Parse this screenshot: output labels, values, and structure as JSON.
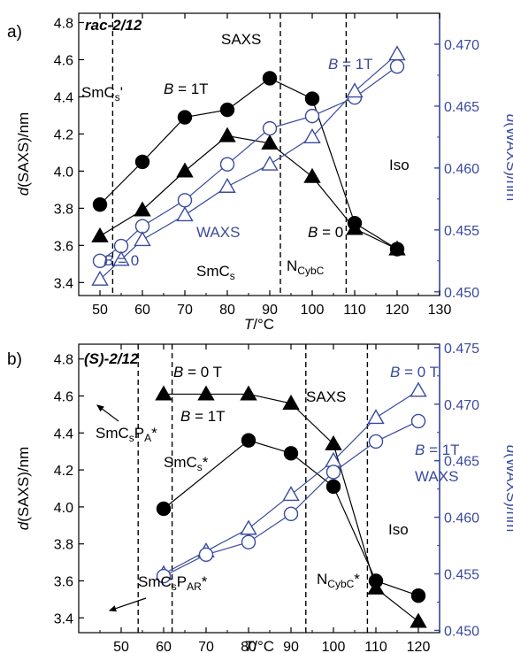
{
  "colors": {
    "black": "#000000",
    "blue": "#3a4a9e"
  },
  "chart_data": [
    {
      "type": "scatter",
      "panel_label": "a)",
      "title": "rac-2/12",
      "xlabel": "T/°C",
      "ylabel": "d(SAXS)/nm",
      "y2label": "d(WAXS)/nm",
      "xlim": [
        45,
        130
      ],
      "ylim": [
        3.33,
        4.85
      ],
      "y2lim": [
        0.4497,
        0.4725
      ],
      "x_ticks": [
        50,
        60,
        70,
        80,
        90,
        100,
        110,
        120,
        130
      ],
      "y_ticks": [
        3.4,
        3.6,
        3.8,
        4.0,
        4.2,
        4.4,
        4.6,
        4.8
      ],
      "y2_ticks": [
        0.45,
        0.455,
        0.46,
        0.465,
        0.47
      ],
      "x_tick_labels": [
        "50",
        "60",
        "70",
        "80",
        "90",
        "100",
        "110",
        "120",
        "130"
      ],
      "y_tick_labels": [
        "3.4",
        "3.6",
        "3.8",
        "4.0",
        "4.2",
        "4.4",
        "4.6",
        "4.8"
      ],
      "y2_tick_labels": [
        "0.450",
        "0.455",
        "0.460",
        "0.465",
        "0.470"
      ],
      "phase_boundaries": [
        53,
        92.5,
        108
      ],
      "series": [
        {
          "axis": "left",
          "marker": "circle",
          "fill": true,
          "color": "#000000",
          "x": [
            50,
            60,
            70,
            80,
            90,
            100,
            110,
            120
          ],
          "y": [
            3.82,
            4.05,
            4.29,
            4.33,
            4.5,
            4.39,
            3.72,
            3.58
          ]
        },
        {
          "axis": "left",
          "marker": "triangle",
          "fill": true,
          "color": "#000000",
          "x": [
            50,
            60,
            70,
            80,
            90,
            100,
            110,
            120
          ],
          "y": [
            3.65,
            3.79,
            4.0,
            4.19,
            4.15,
            3.97,
            3.69,
            3.58
          ]
        },
        {
          "axis": "right",
          "marker": "circle",
          "fill": false,
          "color": "#3a4a9e",
          "x": [
            50,
            55,
            60,
            70,
            80,
            90,
            100,
            110,
            120
          ],
          "y": [
            0.4525,
            0.4537,
            0.4553,
            0.4574,
            0.4603,
            0.4632,
            0.4642,
            0.4657,
            0.4682
          ]
        },
        {
          "axis": "right",
          "marker": "triangle",
          "fill": false,
          "color": "#3a4a9e",
          "x": [
            50,
            55,
            60,
            70,
            80,
            90,
            100,
            110,
            120
          ],
          "y": [
            0.451,
            0.4526,
            0.4542,
            0.4562,
            0.4585,
            0.4603,
            0.4625,
            0.4662,
            0.4692
          ]
        }
      ],
      "annotations": [
        {
          "text": "SAXS",
          "color": "#000000"
        },
        {
          "text": "SmCs'",
          "color": "#000000"
        },
        {
          "text": "B = 1T",
          "color": "#000000"
        },
        {
          "text": "B = 1T",
          "color": "#3a4a9e"
        },
        {
          "text": "Iso",
          "color": "#000000"
        },
        {
          "text": "WAXS",
          "color": "#3a4a9e"
        },
        {
          "text": "B = 0",
          "color": "#000000"
        },
        {
          "text": "B = 0",
          "color": "#3a4a9e"
        },
        {
          "text": "SmCs",
          "color": "#000000"
        },
        {
          "text": "NCybC",
          "color": "#000000"
        }
      ]
    },
    {
      "type": "scatter",
      "panel_label": "b)",
      "title": "(S)-2/12",
      "xlabel": "T/°C",
      "ylabel": "d(SAXS)/nm",
      "y2label": "d(WAXS)/nm",
      "xlim": [
        40,
        125
      ],
      "ylim": [
        3.32,
        4.88
      ],
      "y2lim": [
        0.4498,
        0.4753
      ],
      "x_ticks": [
        50,
        60,
        70,
        80,
        90,
        100,
        110,
        120
      ],
      "y_ticks": [
        3.4,
        3.6,
        3.8,
        4.0,
        4.2,
        4.4,
        4.6,
        4.8
      ],
      "y2_ticks": [
        0.45,
        0.455,
        0.46,
        0.465,
        0.47,
        0.475
      ],
      "x_tick_labels": [
        "50",
        "60",
        "70",
        "80",
        "90",
        "100",
        "110",
        "120"
      ],
      "y_tick_labels": [
        "3.4",
        "3.6",
        "3.8",
        "4.0",
        "4.2",
        "4.4",
        "4.6",
        "4.8"
      ],
      "y2_tick_labels": [
        "0.450",
        "0.455",
        "0.460",
        "0.465",
        "0.470",
        "0.475"
      ],
      "phase_boundaries": [
        54,
        62,
        93.5,
        108
      ],
      "series": [
        {
          "axis": "left",
          "marker": "triangle",
          "fill": true,
          "color": "#000000",
          "x": [
            60,
            70,
            80,
            90,
            100,
            110,
            120
          ],
          "y": [
            4.61,
            4.61,
            4.61,
            4.56,
            4.34,
            3.56,
            3.38
          ]
        },
        {
          "axis": "left",
          "marker": "circle",
          "fill": true,
          "color": "#000000",
          "x": [
            60,
            80,
            90,
            100,
            110,
            120
          ],
          "y": [
            3.99,
            4.36,
            4.29,
            4.11,
            3.6,
            3.52
          ]
        },
        {
          "axis": "right",
          "marker": "triangle",
          "fill": false,
          "color": "#3a4a9e",
          "x": [
            60,
            70,
            80,
            90,
            100,
            110,
            120
          ],
          "y": [
            0.455,
            0.457,
            0.459,
            0.462,
            0.465,
            0.4688,
            0.4712
          ]
        },
        {
          "axis": "right",
          "marker": "circle",
          "fill": false,
          "color": "#3a4a9e",
          "x": [
            60,
            70,
            80,
            90,
            100,
            110,
            120
          ],
          "y": [
            0.4548,
            0.4567,
            0.4578,
            0.4603,
            0.464,
            0.4667,
            0.4685
          ]
        }
      ],
      "annotations": [
        {
          "text": "B = 0 T",
          "color": "#000000"
        },
        {
          "text": "B = 0 T",
          "color": "#3a4a9e"
        },
        {
          "text": "SAXS",
          "color": "#000000"
        },
        {
          "text": "B = 1T",
          "color": "#000000"
        },
        {
          "text": "SmCsPA*",
          "color": "#000000"
        },
        {
          "text": "SmCs*",
          "color": "#000000"
        },
        {
          "text": "B = 1T",
          "color": "#3a4a9e"
        },
        {
          "text": "WAXS",
          "color": "#3a4a9e"
        },
        {
          "text": "Iso",
          "color": "#000000"
        },
        {
          "text": "NCybC*",
          "color": "#000000"
        },
        {
          "text": "SmCsPAR*",
          "color": "#000000"
        }
      ]
    }
  ]
}
